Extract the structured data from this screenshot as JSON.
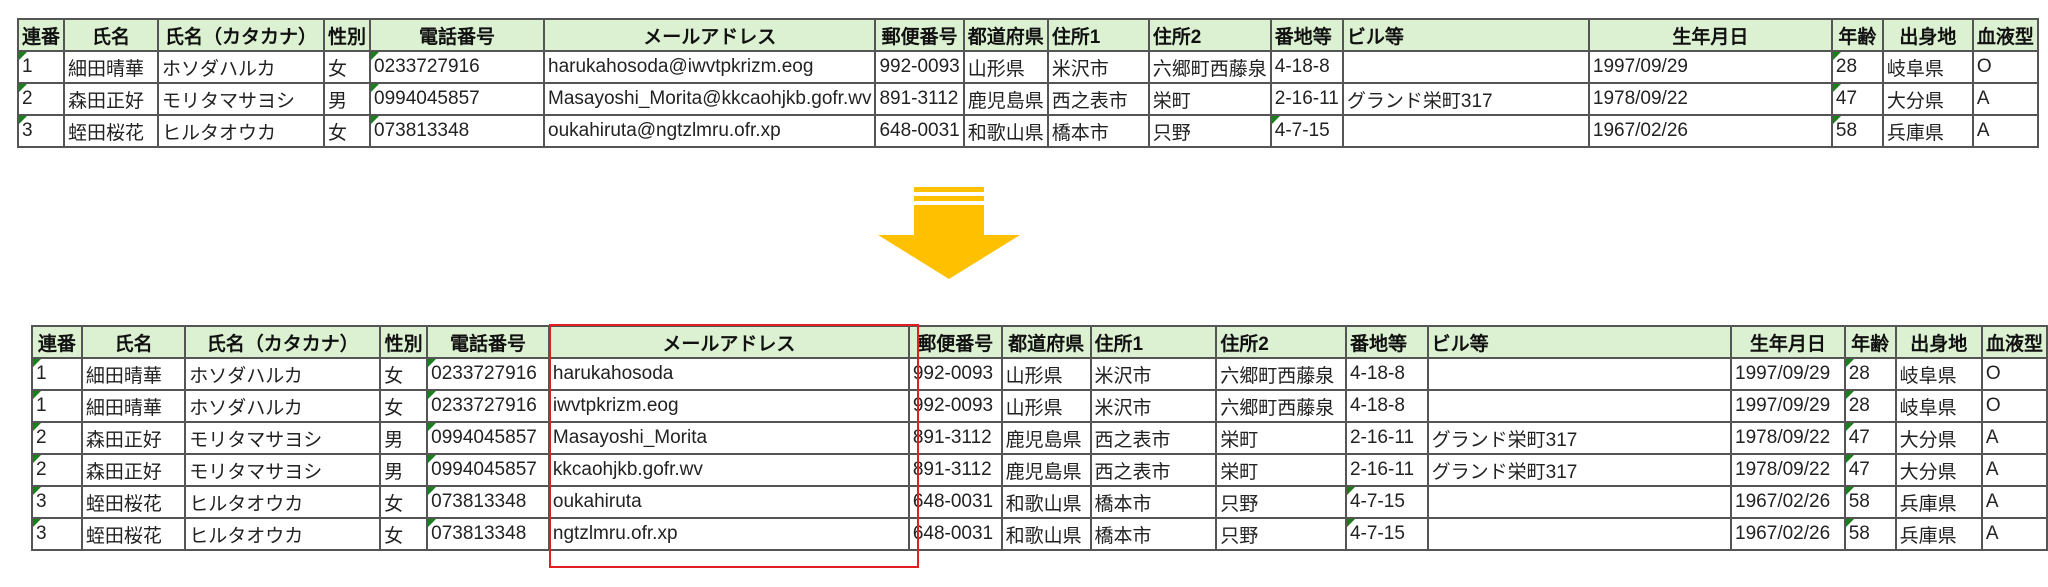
{
  "headers": [
    "連番",
    "氏名",
    "氏名（カタカナ）",
    "性別",
    "電話番号",
    "メールアドレス",
    "郵便番号",
    "都道府県",
    "住所1",
    "住所2",
    "番地等",
    "ビル等",
    "生年月日",
    "年齢",
    "出身地",
    "血液型"
  ],
  "before": {
    "rows": [
      [
        "1",
        "細田晴華",
        "ホソダハルカ",
        "女",
        "0233727916",
        "harukahosoda@iwvtpkrizm.eog",
        "992-0093",
        "山形県",
        "米沢市",
        "六郷町西藤泉",
        "4-18-8",
        "",
        "1997/09/29",
        "28",
        "岐阜県",
        "O"
      ],
      [
        "2",
        "森田正好",
        "モリタマサヨシ",
        "男",
        "0994045857",
        "Masayoshi_Morita@kkcaohjkb.gofr.wv",
        "891-3112",
        "鹿児島県",
        "西之表市",
        "栄町",
        "2-16-11",
        "グランド栄町317",
        "1978/09/22",
        "47",
        "大分県",
        "A"
      ],
      [
        "3",
        "蛭田桜花",
        "ヒルタオウカ",
        "女",
        "073813348",
        "oukahiruta@ngtzlmru.ofr.xp",
        "648-0031",
        "和歌山県",
        "橋本市",
        "只野",
        "4-7-15",
        "",
        "1967/02/26",
        "58",
        "兵庫県",
        "A"
      ]
    ]
  },
  "after": {
    "rows": [
      [
        "1",
        "細田晴華",
        "ホソダハルカ",
        "女",
        "0233727916",
        "harukahosoda",
        "992-0093",
        "山形県",
        "米沢市",
        "六郷町西藤泉",
        "4-18-8",
        "",
        "1997/09/29",
        "28",
        "岐阜県",
        "O"
      ],
      [
        "1",
        "細田晴華",
        "ホソダハルカ",
        "女",
        "0233727916",
        "iwvtpkrizm.eog",
        "992-0093",
        "山形県",
        "米沢市",
        "六郷町西藤泉",
        "4-18-8",
        "",
        "1997/09/29",
        "28",
        "岐阜県",
        "O"
      ],
      [
        "2",
        "森田正好",
        "モリタマサヨシ",
        "男",
        "0994045857",
        "Masayoshi_Morita",
        "891-3112",
        "鹿児島県",
        "西之表市",
        "栄町",
        "2-16-11",
        "グランド栄町317",
        "1978/09/22",
        "47",
        "大分県",
        "A"
      ],
      [
        "2",
        "森田正好",
        "モリタマサヨシ",
        "男",
        "0994045857",
        "kkcaohjkb.gofr.wv",
        "891-3112",
        "鹿児島県",
        "西之表市",
        "栄町",
        "2-16-11",
        "グランド栄町317",
        "1978/09/22",
        "47",
        "大分県",
        "A"
      ],
      [
        "3",
        "蛭田桜花",
        "ヒルタオウカ",
        "女",
        "073813348",
        "oukahiruta",
        "648-0031",
        "和歌山県",
        "橋本市",
        "只野",
        "4-7-15",
        "",
        "1967/02/26",
        "58",
        "兵庫県",
        "A"
      ],
      [
        "3",
        "蛭田桜花",
        "ヒルタオウカ",
        "女",
        "073813348",
        "ngtzlmru.ofr.xp",
        "648-0031",
        "和歌山県",
        "橋本市",
        "只野",
        "4-7-15",
        "",
        "1967/02/26",
        "58",
        "兵庫県",
        "A"
      ]
    ]
  },
  "colors": {
    "header_fill": "#dcf0d2",
    "arrow": "#ffc000",
    "highlight": "#e02020",
    "text_marker": "#1a7f1a"
  },
  "arrow_icon": "arrow-down-icon"
}
